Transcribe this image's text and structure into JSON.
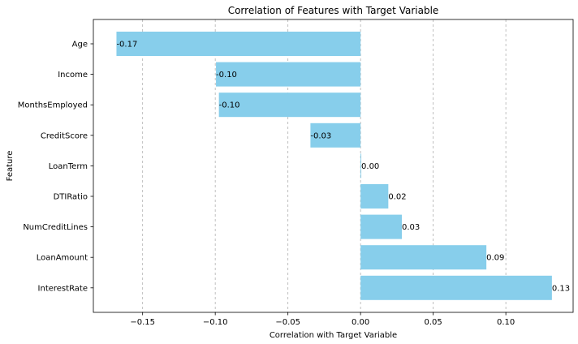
{
  "chart_data": {
    "type": "bar",
    "orientation": "horizontal",
    "title": "Correlation of Features with Target Variable",
    "xlabel": "Correlation with Target Variable",
    "ylabel": "Feature",
    "categories": [
      "Age",
      "Income",
      "MonthsEmployed",
      "CreditScore",
      "LoanTerm",
      "DTIRatio",
      "NumCreditLines",
      "LoanAmount",
      "InterestRate"
    ],
    "values": [
      -0.168,
      -0.0995,
      -0.0975,
      -0.0345,
      0.0005,
      0.0191,
      0.0284,
      0.0866,
      0.1317
    ],
    "value_labels": [
      "-0.17",
      "-0.10",
      "-0.10",
      "-0.03",
      "0.00",
      "0.02",
      "0.03",
      "0.09",
      "0.13"
    ],
    "xlim": [
      -0.1839,
      0.1463
    ],
    "xticks": [
      -0.15,
      -0.1,
      -0.05,
      0.0,
      0.05,
      0.1
    ],
    "xtick_labels": [
      "−0.15",
      "−0.10",
      "−0.05",
      "0.00",
      "0.05",
      "0.10"
    ],
    "grid": "x-dashed",
    "bar_color": "#87ceeb"
  }
}
